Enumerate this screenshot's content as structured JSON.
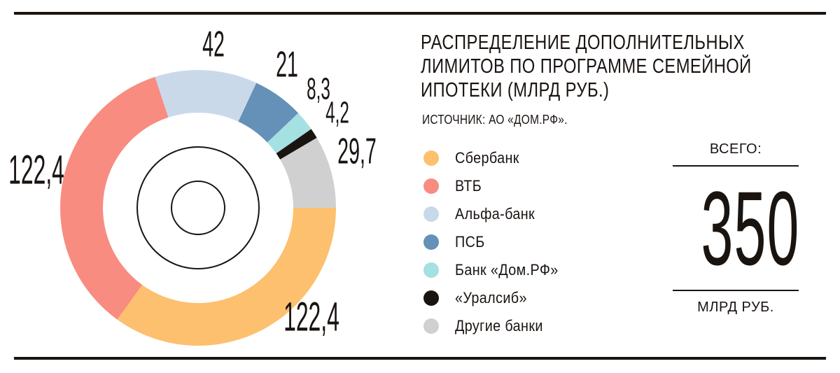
{
  "chart_data": {
    "type": "pie",
    "variant": "donut",
    "title": [
      "РАСПРЕДЕЛЕНИЕ ДОПОЛНИТЕЛЬНЫХ",
      "ЛИМИТОВ ПО ПРОГРАММЕ СЕМЕЙНОЙ",
      "ИПОТЕКИ (МЛРД РУБ.)"
    ],
    "source": "ИСТОЧНИК: АО «ДОМ.РФ».",
    "legend_placement": "right",
    "slices": [
      {
        "name": "Сбербанк",
        "value": 122.4,
        "label": "122,4",
        "color": "#fdc06f"
      },
      {
        "name": "ВТБ",
        "value": 122.4,
        "label": "122,4",
        "color": "#f88c80"
      },
      {
        "name": "Альфа-банк",
        "value": 42,
        "label": "42",
        "color": "#c9d9ea"
      },
      {
        "name": "ПСБ",
        "value": 21,
        "label": "21",
        "color": "#6590b8"
      },
      {
        "name": "Банк «Дом.РФ»",
        "value": 8.3,
        "label": "8,3",
        "color": "#a5e0e2"
      },
      {
        "name": "«Уралсиб»",
        "value": 4.2,
        "label": "4,2",
        "color": "#1a1411"
      },
      {
        "name": "Другие банки",
        "value": 29.7,
        "label": "29,7",
        "color": "#d0d0d0"
      }
    ],
    "total": {
      "caption": "ВСЕГО:",
      "value": "350",
      "unit": "МЛРД РУБ."
    }
  }
}
